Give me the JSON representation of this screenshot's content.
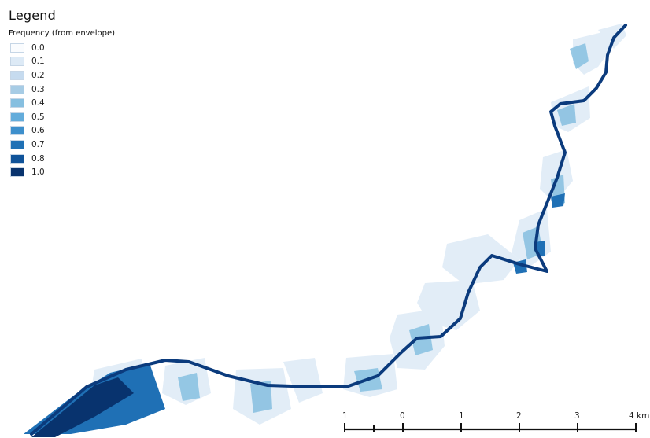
{
  "legend": {
    "title": "Legend",
    "subtitle": "Frequency (from envelope)",
    "items": [
      {
        "label": "0.0",
        "color": "#fafcfe"
      },
      {
        "label": "0.1",
        "color": "#ddeaf6"
      },
      {
        "label": "0.2",
        "color": "#c6dbef"
      },
      {
        "label": "0.3",
        "color": "#a7cce5"
      },
      {
        "label": "0.4",
        "color": "#86bfe0"
      },
      {
        "label": "0.5",
        "color": "#63acdb"
      },
      {
        "label": "0.6",
        "color": "#3d8fcc"
      },
      {
        "label": "0.7",
        "color": "#1f70b5"
      },
      {
        "label": "0.8",
        "color": "#0f539a"
      },
      {
        "label": "1.0",
        "color": "#08336e"
      }
    ]
  },
  "scale_bar": {
    "ticks": [
      "1",
      "0",
      "1",
      "2",
      "3",
      "4 km"
    ]
  }
}
